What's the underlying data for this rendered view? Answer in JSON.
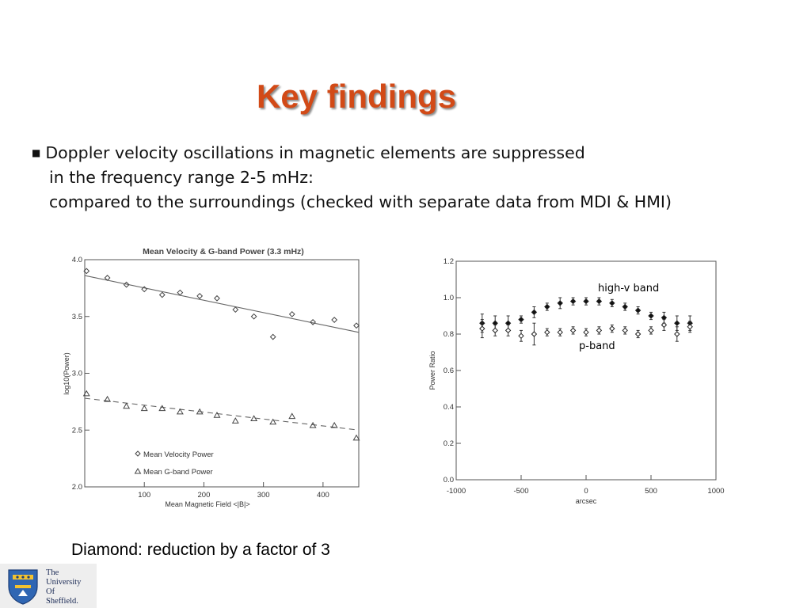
{
  "title": "Key findings",
  "bullet": {
    "line1": "Doppler velocity oscillations in magnetic elements are suppressed",
    "line2": "in the frequency range 2-5 mHz:",
    "line3": "compared to the surroundings  (checked with separate data from MDI & HMI)"
  },
  "caption": "Diamond: reduction by a factor of 3",
  "logo": {
    "lines": [
      "The",
      "University",
      "Of",
      "Sheffield."
    ],
    "colors": {
      "shield": "#2f66b3",
      "crest": "#f2c230"
    }
  },
  "colors": {
    "title": "#d24a17",
    "text": "#111111"
  },
  "chart_data": [
    {
      "type": "scatter",
      "title": "Mean Velocity & G-band Power (3.3 mHz)",
      "xlabel": "Mean Magnetic Field <|B|>",
      "ylabel": "log10(Power)",
      "xlim": [
        0,
        460
      ],
      "ylim": [
        2.0,
        4.0
      ],
      "xticks": [
        100,
        200,
        300,
        400
      ],
      "yticks": [
        2.0,
        2.5,
        3.0,
        3.5,
        4.0
      ],
      "ytick_labels": [
        "2.0",
        "2.5",
        "3.0",
        "3.5",
        "4.0"
      ],
      "legend_placement": "bottom-left",
      "series": [
        {
          "name": "Mean Velocity Power",
          "marker": "diamond",
          "x": [
            3,
            38,
            70,
            100,
            130,
            160,
            193,
            222,
            253,
            284,
            316,
            348,
            383,
            419,
            456
          ],
          "y": [
            3.9,
            3.84,
            3.78,
            3.74,
            3.69,
            3.71,
            3.68,
            3.66,
            3.56,
            3.5,
            3.32,
            3.52,
            3.45,
            3.47,
            3.42
          ],
          "fit": {
            "x": [
              0,
              460
            ],
            "y": [
              3.86,
              3.36
            ],
            "style": "solid"
          }
        },
        {
          "name": "Mean G-band Power",
          "marker": "triangle",
          "x": [
            3,
            38,
            70,
            100,
            130,
            160,
            193,
            222,
            253,
            284,
            316,
            348,
            383,
            419,
            456
          ],
          "y": [
            2.82,
            2.77,
            2.71,
            2.69,
            2.69,
            2.66,
            2.66,
            2.63,
            2.58,
            2.6,
            2.57,
            2.62,
            2.54,
            2.54,
            2.43
          ],
          "fit": {
            "x": [
              0,
              460
            ],
            "y": [
              2.78,
              2.5
            ],
            "style": "dashed"
          }
        }
      ]
    },
    {
      "type": "scatter",
      "title": "",
      "xlabel": "arcsec",
      "ylabel": "Power Ratio",
      "xlim": [
        -1000,
        1000
      ],
      "ylim": [
        0.0,
        1.2
      ],
      "xticks": [
        -1000,
        -500,
        0,
        500,
        1000
      ],
      "yticks": [
        0.0,
        0.2,
        0.4,
        0.6,
        0.8,
        1.0,
        1.2
      ],
      "ytick_labels": [
        "0.0",
        "0.2",
        "0.4",
        "0.6",
        "0.8",
        "1.0",
        "1.2"
      ],
      "series": [
        {
          "name": "high-v band",
          "marker": "filled-diamond",
          "x": [
            -800,
            -700,
            -600,
            -500,
            -400,
            -300,
            -200,
            -100,
            0,
            100,
            200,
            300,
            400,
            500,
            600,
            700,
            800
          ],
          "y": [
            0.86,
            0.86,
            0.86,
            0.88,
            0.92,
            0.95,
            0.97,
            0.98,
            0.98,
            0.98,
            0.97,
            0.95,
            0.93,
            0.9,
            0.89,
            0.86,
            0.86
          ],
          "err": [
            0.05,
            0.04,
            0.04,
            0.02,
            0.03,
            0.02,
            0.03,
            0.02,
            0.02,
            0.02,
            0.02,
            0.02,
            0.02,
            0.02,
            0.03,
            0.04,
            0.04
          ]
        },
        {
          "name": "p-band",
          "marker": "open-diamond",
          "x": [
            -800,
            -700,
            -600,
            -500,
            -400,
            -300,
            -200,
            -100,
            0,
            100,
            200,
            300,
            400,
            500,
            600,
            700,
            800
          ],
          "y": [
            0.83,
            0.82,
            0.82,
            0.79,
            0.8,
            0.81,
            0.81,
            0.82,
            0.81,
            0.82,
            0.83,
            0.82,
            0.8,
            0.82,
            0.85,
            0.8,
            0.84
          ],
          "err": [
            0.05,
            0.03,
            0.03,
            0.03,
            0.06,
            0.02,
            0.02,
            0.02,
            0.02,
            0.02,
            0.02,
            0.02,
            0.02,
            0.02,
            0.03,
            0.04,
            0.03
          ]
        }
      ]
    }
  ]
}
